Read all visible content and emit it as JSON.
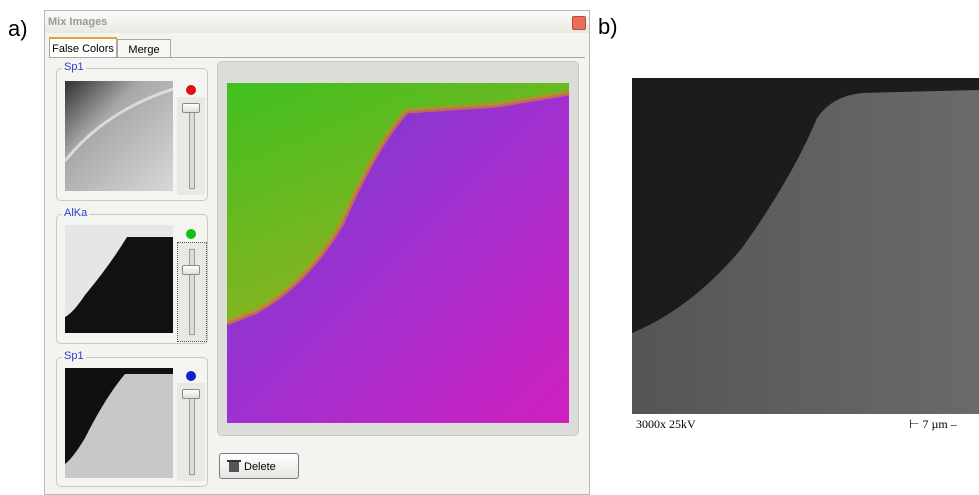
{
  "panel_labels": [
    "a)",
    "b)"
  ],
  "window": {
    "title": "Mix Images",
    "tabs": [
      "False Colors",
      "Merge"
    ],
    "channels": [
      {
        "label": "Sp1"
      },
      {
        "label": "AlKa"
      },
      {
        "label": "Sp1"
      }
    ],
    "button": "Delete"
  },
  "sem": {
    "info": "3000x 25kV",
    "scale": "⊢ 7 µm –"
  }
}
